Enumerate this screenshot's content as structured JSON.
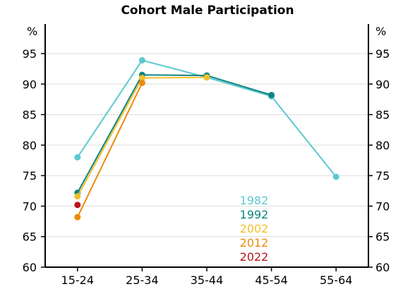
{
  "chart_data": {
    "type": "line",
    "title": "Cohort Male Participation",
    "y_unit_left": "%",
    "y_unit_right": "%",
    "categories": [
      "15-24",
      "25-34",
      "35-44",
      "45-54",
      "55-64"
    ],
    "ylim": [
      60,
      95
    ],
    "yticks": [
      60,
      65,
      70,
      75,
      80,
      85,
      90,
      95
    ],
    "grid": true,
    "legend_position": "bottom-center",
    "series": [
      {
        "name": "1982",
        "color": "#5dc8d0",
        "values": [
          78.0,
          93.9,
          91.1,
          88.0,
          74.8
        ]
      },
      {
        "name": "1992",
        "color": "#0e8582",
        "values": [
          72.2,
          91.5,
          91.4,
          88.2,
          null
        ]
      },
      {
        "name": "2002",
        "color": "#f2c12e",
        "values": [
          71.6,
          91.0,
          91.1,
          null,
          null
        ]
      },
      {
        "name": "2012",
        "color": "#ec8a0c",
        "values": [
          68.2,
          90.2,
          null,
          null,
          null
        ]
      },
      {
        "name": "2022",
        "color": "#b8141b",
        "values": [
          70.2,
          null,
          null,
          null,
          null
        ]
      }
    ]
  }
}
